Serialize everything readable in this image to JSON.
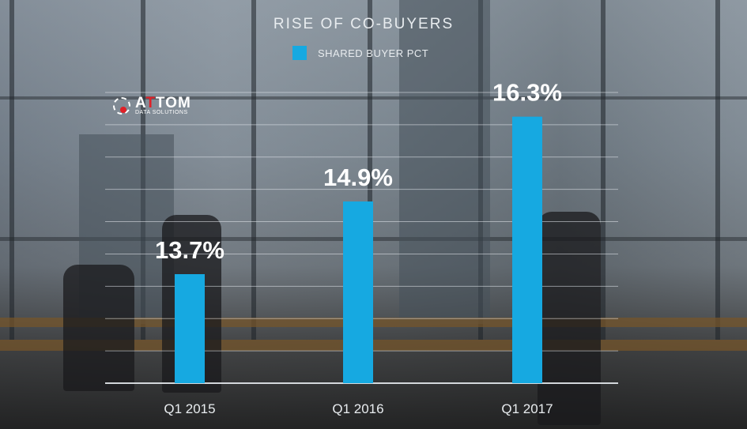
{
  "logo": {
    "prefix": "A",
    "highlight": "T",
    "suffix": "TOM",
    "tagline": "DATA SOLUTIONS"
  },
  "colors": {
    "bar": "#16a9e1",
    "text": "#e8ecef",
    "label": "#ffffff",
    "grid": "#e6eaee"
  },
  "chart_data": {
    "type": "bar",
    "title": "RISE OF CO-BUYERS",
    "legend": {
      "entries": [
        "SHARED BUYER PCT"
      ],
      "position": "top-center"
    },
    "categories": [
      "Q1 2015",
      "Q1 2016",
      "Q1 2017"
    ],
    "series": [
      {
        "name": "SHARED BUYER PCT",
        "values": [
          13.7,
          14.9,
          16.3
        ]
      }
    ],
    "data_labels": [
      "13.7%",
      "14.9%",
      "16.3%"
    ],
    "ylim": [
      11.9,
      16.7
    ],
    "grid": true,
    "xlabel": "",
    "ylabel": ""
  }
}
